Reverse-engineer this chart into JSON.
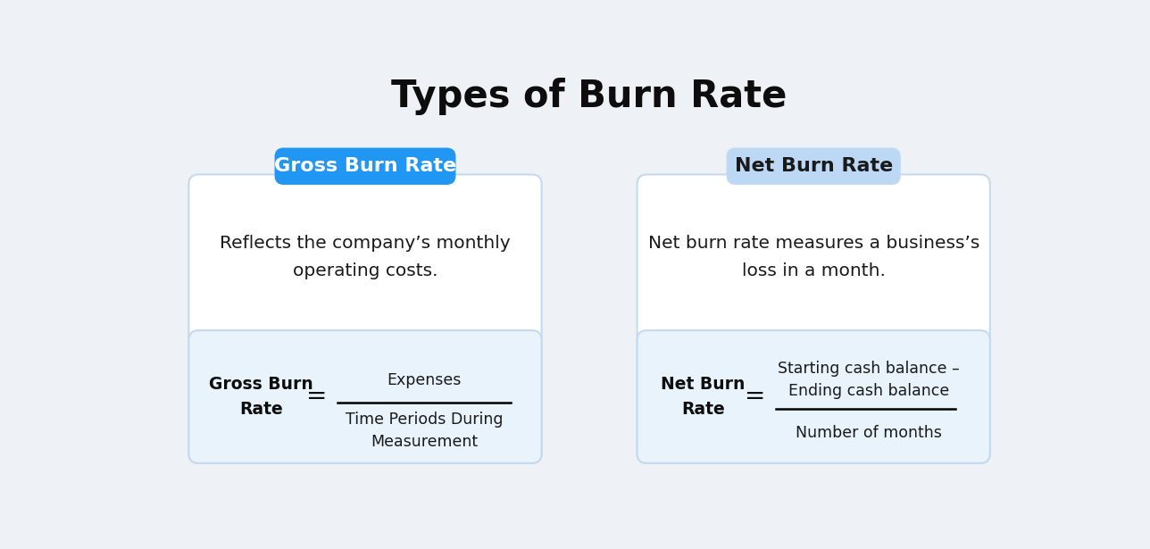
{
  "title": "Types of Burn Rate",
  "title_fontsize": 30,
  "title_color": "#0d0d0d",
  "bg_color": "#eef1f5",
  "card_bg": "#ffffff",
  "card_border": "#c5daf0",
  "formula_bg": "#e8f3fc",
  "gross_header_bg": "#2196f3",
  "gross_header_text": "#ffffff",
  "gross_header_label": "Gross Burn Rate",
  "net_header_bg": "#bcd8f5",
  "net_header_text": "#1a1a1a",
  "net_header_label": "Net Burn Rate",
  "gross_description": "Reflects the company’s monthly\noperating costs.",
  "net_description": "Net burn rate measures a business’s\nloss in a month.",
  "gross_formula_label": "Gross Burn\nRate",
  "net_formula_label": "Net Burn\nRate",
  "gross_numerator": "Expenses",
  "gross_denominator": "Time Periods During\nMeasurement",
  "net_numerator": "Starting cash balance –\nEnding cash balance",
  "net_denominator": "Number of months",
  "equals_sign": "=",
  "desc_fontsize": 14.5,
  "formula_label_fontsize": 13.5,
  "formula_text_fontsize": 12.5,
  "header_fontsize": 16
}
